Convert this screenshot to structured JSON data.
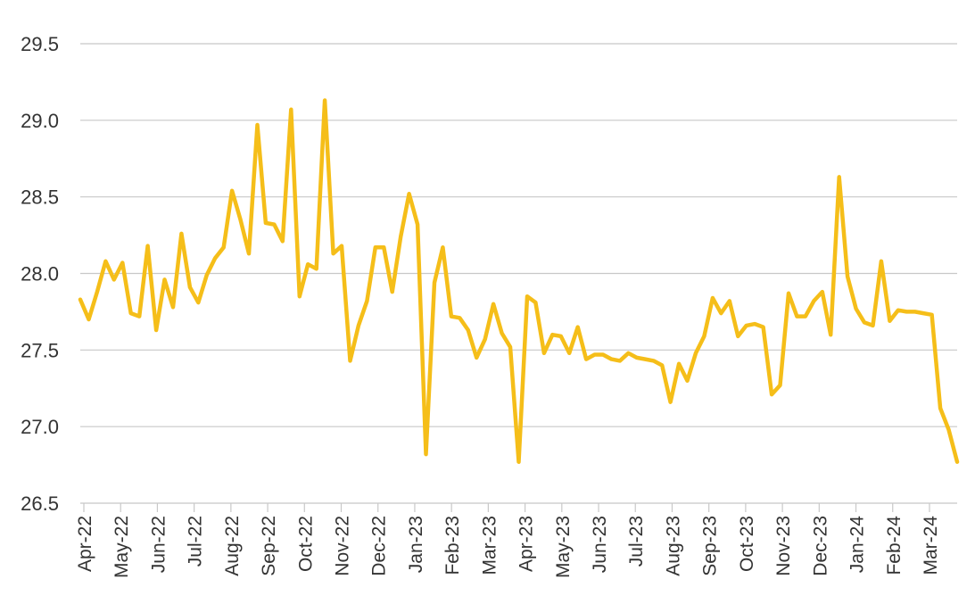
{
  "chart_data": {
    "type": "line",
    "title": "",
    "xlabel": "",
    "ylabel": "",
    "ylim": [
      26.5,
      29.5
    ],
    "yticks": [
      "26.5",
      "27.0",
      "27.5",
      "28.0",
      "28.5",
      "29.0",
      "29.5"
    ],
    "xticks": [
      "Apr-22",
      "May-22",
      "Jun-22",
      "Jul-22",
      "Aug-22",
      "Sep-22",
      "Oct-22",
      "Nov-22",
      "Dec-22",
      "Jan-23",
      "Feb-23",
      "Mar-23",
      "Apr-23",
      "May-23",
      "Jun-23",
      "Jul-23",
      "Aug-23",
      "Sep-23",
      "Oct-23",
      "Nov-23",
      "Dec-23",
      "Jan-24",
      "Feb-24",
      "Mar-24"
    ],
    "grid": true,
    "legend": "none",
    "color": "#F5BE19",
    "series": [
      {
        "values": [
          27.83,
          27.7,
          27.88,
          28.08,
          27.96,
          28.07,
          27.74,
          27.72,
          28.18,
          27.63,
          27.96,
          27.78,
          28.26,
          27.91,
          27.81,
          27.99,
          28.1,
          28.17,
          28.54,
          28.35,
          28.13,
          28.97,
          28.33,
          28.32,
          28.21,
          29.07,
          27.85,
          28.06,
          28.03,
          29.13,
          28.13,
          28.18,
          27.43,
          27.66,
          27.82,
          28.17,
          28.17,
          27.88,
          28.24,
          28.52,
          28.32,
          26.82,
          27.94,
          28.17,
          27.72,
          27.71,
          27.63,
          27.45,
          27.57,
          27.8,
          27.61,
          27.52,
          26.77,
          27.85,
          27.81,
          27.48,
          27.6,
          27.59,
          27.48,
          27.65,
          27.44,
          27.47,
          27.47,
          27.44,
          27.43,
          27.48,
          27.45,
          27.44,
          27.43,
          27.4,
          27.16,
          27.41,
          27.3,
          27.48,
          27.59,
          27.84,
          27.74,
          27.82,
          27.59,
          27.66,
          27.67,
          27.65,
          27.21,
          27.27,
          27.87,
          27.72,
          27.72,
          27.82,
          27.88,
          27.6,
          28.63,
          27.98,
          27.77,
          27.68,
          27.66,
          28.08,
          27.69,
          27.76,
          27.75,
          27.75,
          27.74,
          27.73,
          27.12,
          26.98,
          26.77
        ]
      }
    ]
  }
}
